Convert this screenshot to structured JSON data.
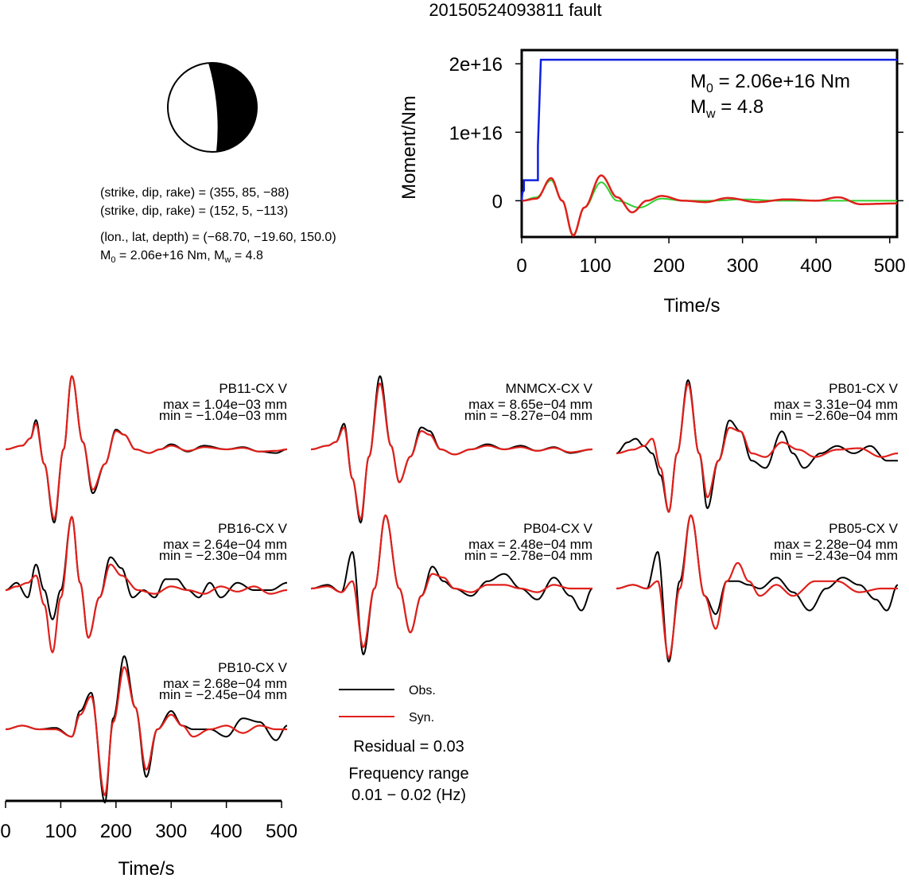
{
  "title": "20150524093811 fault",
  "mechanism": {
    "line1": "(strike, dip, rake) = (355, 85, −88)",
    "line2": "(strike, dip, rake) = (152, 5, −113)",
    "line3": "(lon., lat, depth) = (−68.70, −19.60, 150.0)",
    "line4_m": "M",
    "line4_m0sub": "0",
    "line4_mid": " = 2.06e+16 Nm, M",
    "line4_mwsub": "w",
    "line4_end": " = 4.8"
  },
  "legend": {
    "obs": "Obs.",
    "syn": "Syn.",
    "residual": "Residual = 0.03",
    "freq_title": "Frequency range",
    "freq_value": "0.01 − 0.02 (Hz)"
  },
  "colors": {
    "obs": "#000000",
    "syn": "#e0201b",
    "moment": "#1020e0",
    "stf": "#30d030"
  },
  "chart_data": [
    {
      "type": "line",
      "name": "moment-rate",
      "xlabel": "Time/s",
      "ylabel": "Moment/Nm",
      "xlim": [
        0,
        510
      ],
      "ylim": [
        -5300000000000000.0,
        2.2e+16
      ],
      "xticks": [
        0,
        100,
        200,
        300,
        400,
        500
      ],
      "xtick_labels": [
        "0",
        "100",
        "200",
        "300",
        "400",
        "500"
      ],
      "yticks": [
        0,
        1e+16,
        2e+16
      ],
      "ytick_labels": [
        "0",
        "1e+16",
        "2e+16"
      ],
      "annotation_m0_m": "M",
      "annotation_m0_sub": "0",
      "annotation_m0_value": " = 2.06e+16 Nm",
      "annotation_mw_m": "M",
      "annotation_mw_sub": "w",
      "annotation_mw_value": " = 4.8",
      "cumulative_moment": {
        "x": [
          0,
          1,
          3,
          3,
          22,
          22,
          26,
          510
        ],
        "y": [
          0,
          1200000000000000.0,
          1500000000000000.0,
          3000000000000000.0,
          3000000000000000.0,
          8000000000000000.0,
          2.06e+16,
          2.06e+16
        ]
      },
      "stf_green": {
        "x": [
          0,
          20,
          40,
          55,
          70,
          85,
          108,
          130,
          160,
          190,
          220,
          260,
          300,
          350,
          400,
          450,
          510
        ],
        "y": [
          0,
          500000000000000.0,
          3000000000000000.0,
          0,
          -5000000000000000.0,
          -1000000000000000.0,
          2700000000000000.0,
          0,
          -1000000000000000.0,
          300000000000000.0,
          0,
          0,
          200000000000000.0,
          0,
          0,
          0,
          0
        ]
      },
      "stf_red": {
        "x": [
          0,
          20,
          40,
          55,
          70,
          85,
          108,
          130,
          150,
          170,
          190,
          220,
          250,
          280,
          320,
          360,
          400,
          430,
          460,
          510
        ],
        "y": [
          0,
          300000000000000.0,
          3300000000000000.0,
          0,
          -5100000000000000.0,
          -1000000000000000.0,
          3700000000000000.0,
          500000000000000.0,
          -1700000000000000.0,
          0,
          700000000000000.0,
          0,
          -200000000000000.0,
          400000000000000.0,
          -200000000000000.0,
          200000000000000.0,
          0,
          500000000000000.0,
          -500000000000000.0,
          -400000000000000.0
        ]
      }
    },
    {
      "type": "line",
      "name": "waveforms",
      "xlabel": "Time/s",
      "xlim": [
        0,
        510
      ],
      "xticks": [
        0,
        100,
        200,
        300,
        400,
        500
      ],
      "xtick_labels": [
        "0",
        "100",
        "200",
        "300",
        "400",
        "500"
      ],
      "series": [
        {
          "name": "PB11-CX V",
          "max": "max = 1.04e−03 mm",
          "min": "min = −1.04e−03 mm",
          "syn": {
            "x": [
              0,
              30,
              45,
              55,
              70,
              88,
              105,
              120,
              140,
              158,
              180,
              200,
              215,
              235,
              260,
              280,
              300,
              330,
              360,
              400,
              430,
              460,
              490,
              510
            ],
            "y": [
              0,
              0.05,
              0.15,
              0.35,
              -0.2,
              -0.95,
              0,
              1,
              0.1,
              -0.55,
              -0.2,
              0.25,
              0.2,
              0,
              -0.05,
              0,
              0.05,
              -0.02,
              0.03,
              0,
              0.02,
              -0.03,
              -0.02,
              0
            ]
          },
          "obs": {
            "x": [
              0,
              30,
              45,
              55,
              70,
              88,
              105,
              120,
              140,
              158,
              180,
              200,
              215,
              235,
              260,
              280,
              300,
              330,
              360,
              400,
              430,
              460,
              490,
              510
            ],
            "y": [
              0,
              0.05,
              0.15,
              0.4,
              -0.2,
              -1,
              0,
              1,
              0.1,
              -0.6,
              -0.2,
              0.27,
              0.2,
              0,
              -0.05,
              0,
              0.07,
              -0.03,
              0.05,
              0,
              0.03,
              -0.03,
              -0.05,
              0
            ]
          }
        },
        {
          "name": "MNMCX-CX V",
          "max": "max = 8.65e−04 mm",
          "min": "min = −8.27e−04 mm",
          "syn": {
            "x": [
              0,
              30,
              45,
              60,
              75,
              90,
              105,
              125,
              145,
              160,
              180,
              200,
              215,
              235,
              260,
              290,
              320,
              350,
              380,
              410,
              440,
              470,
              510
            ],
            "y": [
              0,
              0.05,
              0.1,
              0.3,
              -0.4,
              -0.95,
              -0.1,
              0.9,
              0.05,
              -0.45,
              -0.1,
              0.25,
              0.2,
              0,
              -0.07,
              0,
              0.05,
              0,
              0.03,
              -0.02,
              0.02,
              -0.04,
              0
            ]
          },
          "obs": {
            "x": [
              0,
              30,
              45,
              60,
              75,
              90,
              105,
              125,
              145,
              160,
              180,
              200,
              215,
              235,
              260,
              290,
              320,
              350,
              380,
              410,
              440,
              470,
              510
            ],
            "y": [
              0,
              0.05,
              0.1,
              0.35,
              -0.4,
              -1,
              -0.1,
              1,
              0.05,
              -0.45,
              -0.1,
              0.3,
              0.25,
              0,
              -0.07,
              0,
              0.07,
              0,
              0.05,
              -0.02,
              0.03,
              -0.05,
              0
            ]
          }
        },
        {
          "name": "PB01-CX V",
          "max": "max = 3.31e−04 mm",
          "min": "min = −2.60e−04 mm",
          "syn": {
            "x": [
              0,
              30,
              50,
              65,
              80,
              95,
              110,
              130,
              150,
              165,
              185,
              205,
              225,
              245,
              270,
              300,
              330,
              360,
              400,
              440,
              480,
              510
            ],
            "y": [
              0,
              0.05,
              0.1,
              0.2,
              -0.2,
              -0.8,
              0,
              0.95,
              0,
              -0.6,
              -0.1,
              0.35,
              0.3,
              0,
              -0.05,
              0.15,
              0.05,
              -0.05,
              0.05,
              0.07,
              -0.05,
              0
            ]
          },
          "obs": {
            "x": [
              0,
              20,
              35,
              50,
              65,
              80,
              95,
              110,
              130,
              150,
              165,
              185,
              205,
              225,
              245,
              270,
              300,
              320,
              340,
              370,
              400,
              430,
              460,
              490,
              510
            ],
            "y": [
              0,
              0.15,
              0.2,
              0.1,
              0,
              -0.3,
              -0.8,
              0,
              1,
              0,
              -0.75,
              -0.1,
              0.45,
              0.3,
              -0.1,
              -0.2,
              0.3,
              0,
              -0.2,
              0,
              0.1,
              0,
              0.1,
              -0.1,
              -0.1
            ]
          }
        },
        {
          "name": "PB16-CX V",
          "max": "max = 2.64e−04 mm",
          "min": "min = −2.30e−04 mm",
          "syn": {
            "x": [
              0,
              20,
              40,
              55,
              70,
              85,
              100,
              120,
              135,
              150,
              170,
              190,
              210,
              240,
              270,
              300,
              330,
              360,
              390,
              420,
              450,
              480,
              510
            ],
            "y": [
              0,
              0.05,
              0.1,
              0.2,
              -0.2,
              -0.85,
              -0.1,
              1,
              0.1,
              -0.65,
              -0.1,
              0.35,
              0.2,
              0,
              -0.05,
              0.05,
              0,
              -0.05,
              0.05,
              -0.02,
              0.05,
              -0.05,
              0
            ]
          },
          "obs": {
            "x": [
              0,
              20,
              40,
              55,
              70,
              85,
              100,
              120,
              135,
              150,
              170,
              190,
              210,
              230,
              250,
              270,
              290,
              310,
              330,
              350,
              370,
              390,
              420,
              450,
              480,
              510
            ],
            "y": [
              0,
              0.1,
              -0.1,
              0.35,
              0,
              -0.4,
              0,
              1,
              0.1,
              -0.65,
              -0.1,
              0.45,
              0.3,
              -0.1,
              0,
              -0.1,
              0.15,
              0.15,
              0,
              -0.1,
              0.1,
              -0.1,
              0.1,
              0,
              0,
              0.1
            ]
          }
        },
        {
          "name": "PB04-CX V",
          "max": "max = 2.48e−04 mm",
          "min": "min = −2.78e−04 mm",
          "syn": {
            "x": [
              0,
              30,
              55,
              75,
              95,
              115,
              135,
              160,
              180,
              200,
              220,
              240,
              260,
              290,
              320,
              350,
              380,
              410,
              440,
              470,
              510
            ],
            "y": [
              0,
              0.03,
              -0.05,
              0.1,
              -0.8,
              0,
              1,
              0,
              -0.6,
              -0.1,
              0.2,
              0.15,
              0,
              -0.05,
              0.05,
              0.05,
              0,
              -0.05,
              0.05,
              0,
              0
            ]
          },
          "obs": {
            "x": [
              0,
              30,
              55,
              75,
              95,
              115,
              135,
              160,
              180,
              200,
              220,
              240,
              260,
              290,
              320,
              350,
              380,
              410,
              440,
              470,
              490,
              510
            ],
            "y": [
              0,
              0.05,
              -0.05,
              0.5,
              -0.9,
              0,
              1,
              0,
              -0.6,
              -0.1,
              0.3,
              0.1,
              0,
              -0.1,
              0.1,
              0.2,
              0,
              -0.15,
              0.15,
              -0.1,
              -0.3,
              0
            ]
          }
        },
        {
          "name": "PB05-CX V",
          "max": "max = 2.28e−04 mm",
          "min": "min = −2.43e−04 mm",
          "syn": {
            "x": [
              0,
              30,
              55,
              75,
              95,
              115,
              135,
              160,
              180,
              200,
              220,
              240,
              260,
              290,
              320,
              360,
              400,
              440,
              480,
              510
            ],
            "y": [
              0,
              0.05,
              0,
              0.1,
              -0.95,
              0,
              1,
              -0.1,
              -0.55,
              0.1,
              0.35,
              0.1,
              -0.1,
              0.05,
              -0.1,
              0.1,
              0.1,
              -0.05,
              0,
              0
            ]
          },
          "obs": {
            "x": [
              0,
              30,
              55,
              75,
              95,
              115,
              135,
              160,
              180,
              200,
              220,
              240,
              260,
              290,
              320,
              350,
              380,
              410,
              440,
              470,
              490,
              510
            ],
            "y": [
              0,
              0.05,
              0,
              0.5,
              -1,
              0.1,
              1,
              -0.1,
              -0.35,
              0.1,
              0.1,
              0.05,
              0,
              0.15,
              -0.05,
              -0.3,
              0,
              0.15,
              0.05,
              -0.15,
              -0.3,
              0.05
            ]
          }
        },
        {
          "name": "PB10-CX V",
          "max": "max = 2.68e−04 mm",
          "min": "min = −2.45e−04 mm",
          "syn": {
            "x": [
              0,
              30,
              60,
              90,
              120,
              135,
              155,
              180,
              195,
              215,
              235,
              255,
              275,
              300,
              320,
              340,
              370,
              400,
              430,
              460,
              490,
              510
            ],
            "y": [
              0,
              0.05,
              0,
              0,
              -0.1,
              0.2,
              0.45,
              -0.9,
              0.1,
              0.85,
              0.3,
              -0.55,
              0,
              0.2,
              0.05,
              -0.1,
              0,
              0.05,
              -0.05,
              0.05,
              0,
              0
            ]
          },
          "obs": {
            "x": [
              0,
              30,
              60,
              90,
              120,
              135,
              155,
              180,
              195,
              215,
              235,
              255,
              275,
              300,
              320,
              340,
              370,
              400,
              430,
              460,
              490,
              510
            ],
            "y": [
              0,
              0.05,
              0,
              0.02,
              -0.1,
              0.25,
              0.5,
              -1,
              0.15,
              1,
              0.3,
              -0.65,
              0,
              0.25,
              0.05,
              0,
              0,
              -0.1,
              0.15,
              0.1,
              -0.15,
              0.05
            ]
          }
        }
      ]
    }
  ]
}
